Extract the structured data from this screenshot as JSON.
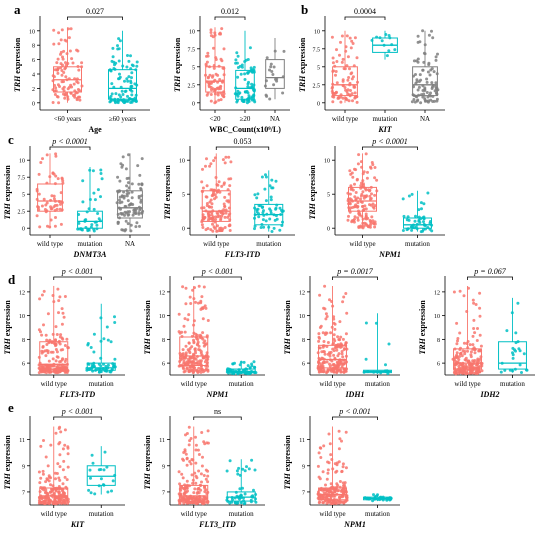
{
  "colors": {
    "wild": "#f8766d",
    "mut": "#00bfc4",
    "na": "#7f7f7f",
    "axis": "#000000"
  },
  "chart_data": [
    {
      "panel_letter": "a",
      "type": "box",
      "ylabel": "TRH expression",
      "xlabel": "Age",
      "categories": [
        "<60 years",
        "≥60 years"
      ],
      "ylim": [
        -1,
        11.5
      ],
      "yticks": [
        0,
        2,
        4,
        6,
        8,
        10
      ],
      "comparisons": [
        {
          "from": 0,
          "to": 1,
          "label": "0.027"
        }
      ],
      "boxes": [
        {
          "q1": 1.5,
          "median": 3.2,
          "q3": 5.0,
          "low": 0,
          "high": 10.5,
          "color": "wild",
          "n": 100
        },
        {
          "q1": 0.5,
          "median": 2.0,
          "q3": 4.6,
          "low": 0,
          "high": 10.0,
          "color": "mut",
          "n": 100
        }
      ]
    },
    {
      "type": "box",
      "ylabel": "TRH expression",
      "xlabel": "WBC_Count(x10⁹/L)",
      "categories": [
        "<20",
        "≥20",
        "NA"
      ],
      "ylim": [
        -1,
        11.5
      ],
      "yticks": [
        0,
        2.5,
        5,
        7.5,
        10
      ],
      "comparisons": [
        {
          "from": 0,
          "to": 1,
          "label": "0.012"
        }
      ],
      "boxes": [
        {
          "q1": 1.5,
          "median": 3.0,
          "q3": 5.0,
          "low": 0,
          "high": 10.5,
          "color": "wild",
          "n": 80
        },
        {
          "q1": 0.5,
          "median": 2.0,
          "q3": 4.5,
          "low": 0,
          "high": 10.0,
          "color": "mut",
          "n": 80
        },
        {
          "q1": 2.0,
          "median": 3.5,
          "q3": 6.0,
          "low": 0.5,
          "high": 9.0,
          "color": "na",
          "n": 20
        }
      ]
    },
    {
      "panel_letter": "b",
      "type": "box",
      "ylabel": "TRH expression",
      "xlabel": "KIT",
      "categories": [
        "wild type",
        "mutation",
        "NA"
      ],
      "ylim": [
        -1,
        11.5
      ],
      "yticks": [
        0,
        2.5,
        5,
        7.5,
        10
      ],
      "comparisons": [
        {
          "from": 0,
          "to": 1,
          "label": "0.0004"
        }
      ],
      "boxes": [
        {
          "q1": 1.0,
          "median": 2.5,
          "q3": 5.0,
          "low": 0,
          "high": 10.0,
          "color": "wild",
          "n": 90
        },
        {
          "q1": 7.0,
          "median": 8.0,
          "q3": 9.0,
          "low": 6.0,
          "high": 10.0,
          "color": "mut",
          "n": 12
        },
        {
          "q1": 1.0,
          "median": 2.5,
          "q3": 5.0,
          "low": 0,
          "high": 10.0,
          "color": "na",
          "n": 90
        }
      ]
    },
    {
      "panel_letter": "c",
      "type": "box",
      "ylabel": "TRH expression",
      "xlabel": "DNMT3A",
      "categories": [
        "wild type",
        "mutation",
        "NA"
      ],
      "ylim": [
        -1,
        11.5
      ],
      "yticks": [
        0,
        2.5,
        5,
        7.5,
        10
      ],
      "comparisons": [
        {
          "from": 0,
          "to": 1,
          "label": "p < 0.0001"
        }
      ],
      "boxes": [
        {
          "q1": 2.5,
          "median": 4.0,
          "q3": 6.5,
          "low": 0,
          "high": 11.0,
          "color": "wild",
          "n": 60
        },
        {
          "q1": 0.0,
          "median": 1.0,
          "q3": 2.5,
          "low": -0.5,
          "high": 9.0,
          "color": "mut",
          "n": 40
        },
        {
          "q1": 1.5,
          "median": 3.0,
          "q3": 5.5,
          "low": -0.5,
          "high": 11.0,
          "color": "na",
          "n": 100
        }
      ]
    },
    {
      "type": "box",
      "ylabel": "TRH expression",
      "xlabel": "FLT3-ITD",
      "categories": [
        "wild type",
        "mutation"
      ],
      "ylim": [
        -1,
        11.5
      ],
      "yticks": [
        0,
        5,
        10
      ],
      "comparisons": [
        {
          "from": 0,
          "to": 1,
          "label": "0.053"
        }
      ],
      "boxes": [
        {
          "q1": 1.0,
          "median": 2.5,
          "q3": 5.5,
          "low": -0.5,
          "high": 11.0,
          "color": "wild",
          "n": 140
        },
        {
          "q1": 0.5,
          "median": 2.0,
          "q3": 3.5,
          "low": -0.5,
          "high": 8.5,
          "color": "mut",
          "n": 60
        }
      ]
    },
    {
      "type": "box",
      "ylabel": "TRH expression",
      "xlabel": "NPM1",
      "categories": [
        "wild type",
        "mutation"
      ],
      "ylim": [
        -1,
        11.5
      ],
      "yticks": [
        0,
        5,
        10
      ],
      "comparisons": [
        {
          "from": 0,
          "to": 1,
          "label": "p < 0.0001"
        }
      ],
      "boxes": [
        {
          "q1": 2.5,
          "median": 4.0,
          "q3": 6.0,
          "low": 0,
          "high": 11.0,
          "color": "wild",
          "n": 150
        },
        {
          "q1": 0.0,
          "median": 0.5,
          "q3": 1.5,
          "low": -0.5,
          "high": 5.5,
          "color": "mut",
          "n": 50
        }
      ]
    },
    {
      "panel_letter": "d",
      "type": "box",
      "ylabel": "TRH expression",
      "xlabel": "FLT3-ITD",
      "categories": [
        "wild type",
        "mutation"
      ],
      "ylim": [
        5,
        13
      ],
      "yticks": [
        6,
        8,
        10,
        12
      ],
      "comparisons": [
        {
          "from": 0,
          "to": 1,
          "label": "p < 0.001"
        }
      ],
      "boxes": [
        {
          "q1": 5.5,
          "median": 5.9,
          "q3": 7.8,
          "low": 5.2,
          "high": 12.5,
          "color": "wild",
          "n": 200
        },
        {
          "q1": 5.4,
          "median": 5.6,
          "q3": 6.0,
          "low": 5.2,
          "high": 11.0,
          "color": "mut",
          "n": 60
        }
      ]
    },
    {
      "type": "box",
      "ylabel": "TRH expression",
      "xlabel": "NPM1",
      "categories": [
        "wild type",
        "mutation"
      ],
      "ylim": [
        5,
        13
      ],
      "yticks": [
        6,
        8,
        10,
        12
      ],
      "comparisons": [
        {
          "from": 0,
          "to": 1,
          "label": "p < 0.001"
        }
      ],
      "boxes": [
        {
          "q1": 5.8,
          "median": 6.6,
          "q3": 8.2,
          "low": 5.2,
          "high": 12.5,
          "color": "wild",
          "n": 200
        },
        {
          "q1": 5.2,
          "median": 5.3,
          "q3": 5.5,
          "low": 5.1,
          "high": 6.2,
          "color": "mut",
          "n": 60
        }
      ]
    },
    {
      "type": "box",
      "ylabel": "TRH expression",
      "xlabel": "IDH1",
      "categories": [
        "wild type",
        "mutation"
      ],
      "ylim": [
        5,
        13
      ],
      "yticks": [
        6,
        8,
        10,
        12
      ],
      "comparisons": [
        {
          "from": 0,
          "to": 1,
          "label": "p = 0.0017"
        }
      ],
      "boxes": [
        {
          "q1": 5.6,
          "median": 6.3,
          "q3": 7.5,
          "low": 5.2,
          "high": 12.5,
          "color": "wild",
          "n": 200
        },
        {
          "q1": 5.2,
          "median": 5.3,
          "q3": 5.4,
          "low": 5.1,
          "high": 10.2,
          "color": "mut",
          "n": 15
        }
      ]
    },
    {
      "type": "box",
      "ylabel": "TRH expression",
      "xlabel": "IDH2",
      "categories": [
        "wild type",
        "mutation"
      ],
      "ylim": [
        5,
        13
      ],
      "yticks": [
        6,
        8,
        10,
        12
      ],
      "comparisons": [
        {
          "from": 0,
          "to": 1,
          "label": "p = 0.067"
        }
      ],
      "boxes": [
        {
          "q1": 5.5,
          "median": 6.0,
          "q3": 7.2,
          "low": 5.1,
          "high": 12.5,
          "color": "wild",
          "n": 200
        },
        {
          "q1": 5.5,
          "median": 6.0,
          "q3": 7.8,
          "low": 5.2,
          "high": 11.5,
          "color": "mut",
          "n": 25
        }
      ]
    },
    {
      "panel_letter": "e",
      "type": "box",
      "ylabel": "TRH expression",
      "xlabel": "KIT",
      "categories": [
        "wild type",
        "mutation"
      ],
      "ylim": [
        6,
        12.5
      ],
      "yticks": [
        7,
        9,
        11
      ],
      "comparisons": [
        {
          "from": 0,
          "to": 1,
          "label": "p < 0.001"
        }
      ],
      "boxes": [
        {
          "q1": 6.3,
          "median": 6.7,
          "q3": 7.3,
          "low": 6.1,
          "high": 12.0,
          "color": "wild",
          "n": 200
        },
        {
          "q1": 7.5,
          "median": 8.2,
          "q3": 9.0,
          "low": 6.8,
          "high": 10.5,
          "color": "mut",
          "n": 20
        }
      ]
    },
    {
      "type": "box",
      "ylabel": "TRH expression",
      "xlabel": "FLT3_ITD",
      "categories": [
        "wild type",
        "mutation"
      ],
      "ylim": [
        6,
        12.5
      ],
      "yticks": [
        7,
        9,
        11
      ],
      "comparisons": [
        {
          "from": 0,
          "to": 1,
          "label": "ns"
        }
      ],
      "boxes": [
        {
          "q1": 6.3,
          "median": 6.7,
          "q3": 7.5,
          "low": 6.1,
          "high": 12.0,
          "color": "wild",
          "n": 200
        },
        {
          "q1": 6.3,
          "median": 6.6,
          "q3": 7.0,
          "low": 6.1,
          "high": 9.5,
          "color": "mut",
          "n": 50
        }
      ]
    },
    {
      "type": "box",
      "ylabel": "TRH expression",
      "xlabel": "NPM1",
      "categories": [
        "wild type",
        "mutation"
      ],
      "ylim": [
        6,
        12.5
      ],
      "yticks": [
        7,
        9,
        11
      ],
      "comparisons": [
        {
          "from": 0,
          "to": 1,
          "label": "p < 0.001"
        }
      ],
      "boxes": [
        {
          "q1": 6.4,
          "median": 6.8,
          "q3": 7.3,
          "low": 6.1,
          "high": 12.0,
          "color": "wild",
          "n": 200
        },
        {
          "q1": 6.4,
          "median": 6.5,
          "q3": 6.6,
          "low": 6.3,
          "high": 6.8,
          "color": "mut",
          "n": 30
        }
      ]
    }
  ]
}
